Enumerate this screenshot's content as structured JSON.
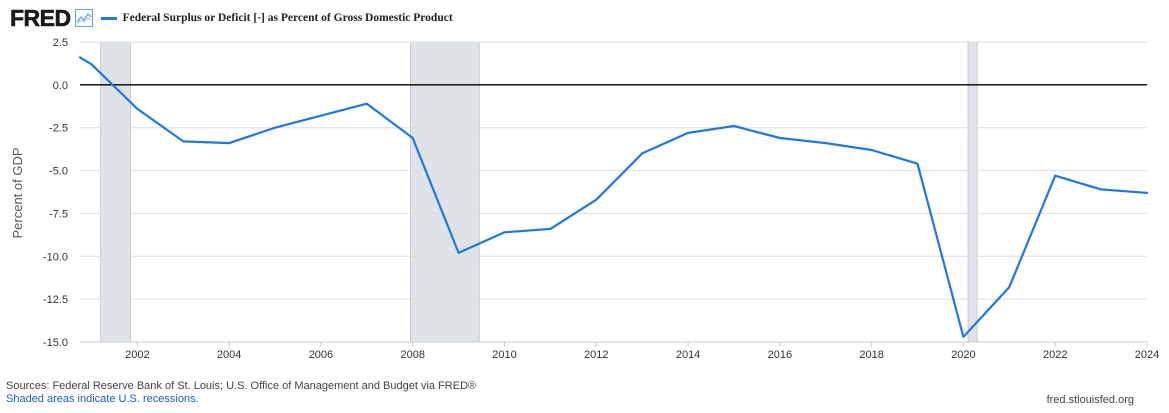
{
  "header": {
    "logo_text": "FRED",
    "logo_icon": "line-graph-icon"
  },
  "colors": {
    "series": "#1f77e0",
    "recession": "#dfe3e7",
    "zero_line": "#000000",
    "grid": "#dddddd"
  },
  "footer": {
    "sources": "Sources: Federal Reserve Bank of St. Louis; U.S. Office of Management and Budget via FRED®",
    "note": "Shaded areas indicate U.S. recessions.",
    "site": "fred.stlouisfed.org"
  },
  "chart_data": {
    "type": "line",
    "title": "",
    "ylabel": "Percent of GDP",
    "xlabel": "",
    "ylim": [
      -15.0,
      2.5
    ],
    "xlim": [
      2000.75,
      2024.0
    ],
    "y_ticks": [
      "2.5",
      "0.0",
      "-2.5",
      "-5.0",
      "-7.5",
      "-10.0",
      "-12.5",
      "-15.0"
    ],
    "x_ticks": [
      "2002",
      "2004",
      "2006",
      "2008",
      "2010",
      "2012",
      "2014",
      "2016",
      "2018",
      "2020",
      "2022",
      "2024"
    ],
    "grid": true,
    "legend_position": "top-left",
    "recessions": [
      {
        "start": 2001.2,
        "end": 2001.85
      },
      {
        "start": 2007.95,
        "end": 2009.45
      },
      {
        "start": 2020.1,
        "end": 2020.3
      }
    ],
    "series": [
      {
        "name": "Federal Surplus or Deficit [-] as Percent of Gross Domestic Product",
        "x": [
          2000.75,
          2001,
          2002,
          2003,
          2004,
          2005,
          2006,
          2007,
          2008,
          2009,
          2010,
          2011,
          2012,
          2013,
          2014,
          2015,
          2016,
          2017,
          2018,
          2019,
          2020,
          2021,
          2022,
          2023,
          2024
        ],
        "y": [
          1.6,
          1.2,
          -1.4,
          -3.3,
          -3.4,
          -2.5,
          -1.8,
          -1.1,
          -3.1,
          -9.8,
          -8.6,
          -8.4,
          -6.7,
          -4.0,
          -2.8,
          -2.4,
          -3.1,
          -3.4,
          -3.8,
          -4.6,
          -14.7,
          -11.8,
          -5.3,
          -6.1,
          -6.3
        ]
      }
    ]
  }
}
